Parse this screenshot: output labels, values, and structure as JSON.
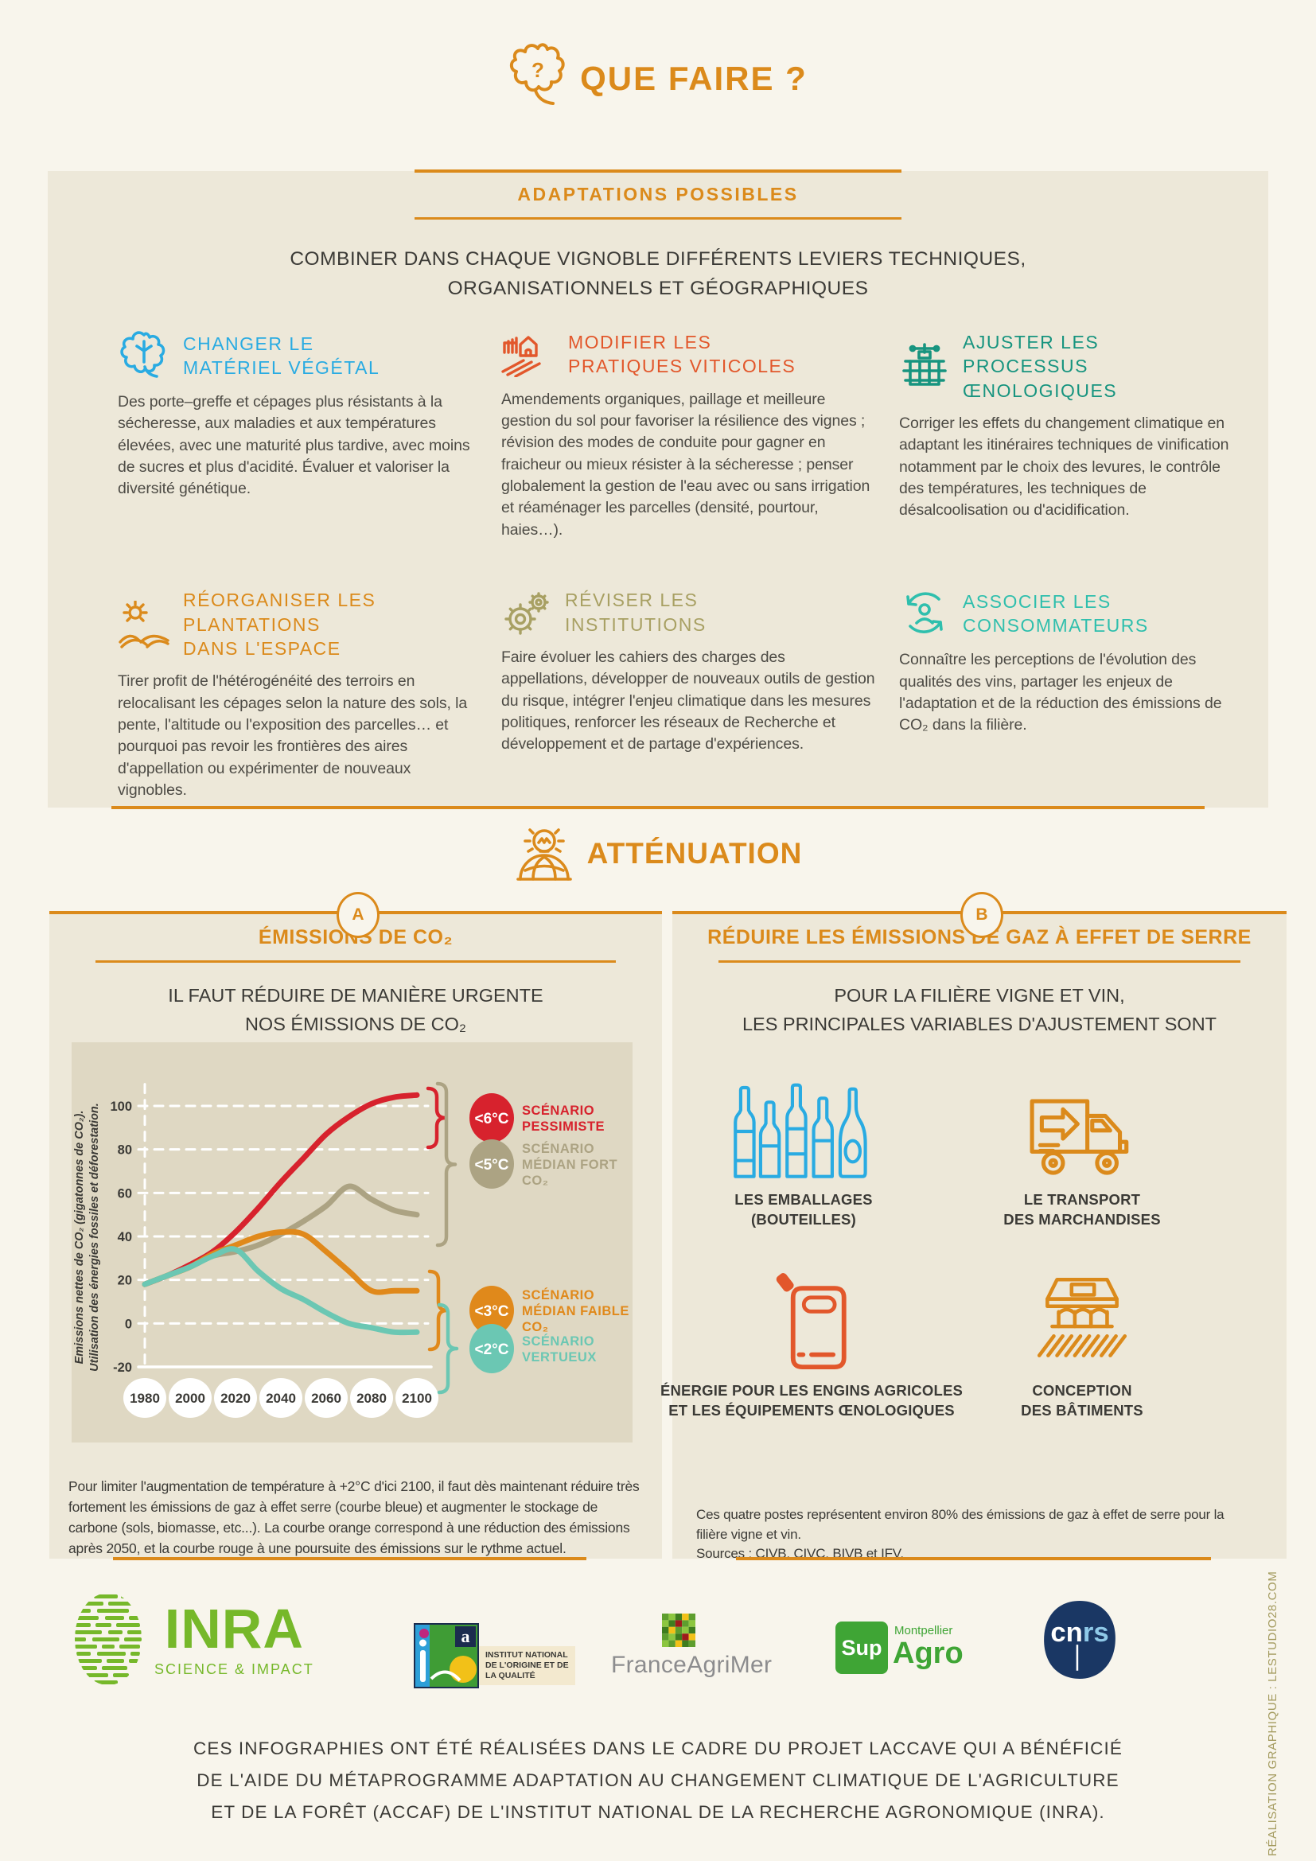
{
  "colors": {
    "cream": "#F8F5EC",
    "beige": "#EDE8D9",
    "tan": "#DFD8C3",
    "orange": "#DB8A1B",
    "red-orange": "#E2572B",
    "blue": "#29ABE2",
    "teal": "#17947F",
    "olive": "#A8A063",
    "turquoise": "#2FBFAD",
    "dark": "#3B3A36",
    "body": "#4D4B45",
    "red": "#D7222D",
    "logo-green": "#76B82A",
    "logo-grey": "#8C8C8E",
    "supagro-green": "#3FA535",
    "cnrs-navy": "#1A3764",
    "credit": "#A49B5F"
  },
  "page": {
    "title": "QUE FAIRE ?",
    "icon_question": "?",
    "credit_vertical": "RÉALISATION GRAPHIQUE : LESTUDIO28.COM"
  },
  "adaptations": {
    "header": "ADAPTATIONS POSSIBLES",
    "intro_line1": "COMBINER DANS CHAQUE VIGNOBLE DIFFÉRENTS LEVIERS TECHNIQUES,",
    "intro_line2": "ORGANISATIONNELS ET GÉOGRAPHIQUES",
    "items": [
      {
        "title": "CHANGER LE MATÉRIEL VÉGÉTAL",
        "color_key": "blue",
        "icon": "vine-leaf",
        "body": "Des porte–greffe et cépages plus résistants à la sécheresse, aux maladies et aux températures élevées, avec une maturité plus tardive, avec moins de sucres et plus d'acidité. Évaluer et valoriser la diversité génétique."
      },
      {
        "title": "MODIFIER LES PRATIQUES VITICOLES",
        "color_key": "red-orange",
        "icon": "farm-house",
        "body": "Amendements organiques, paillage et meilleure gestion du sol pour favoriser la résilience des vignes ; révision des modes de conduite pour gagner en fraicheur ou mieux résister à la sécheresse ; penser globalement la gestion de l'eau avec ou sans irrigation et réaménager les parcelles (densité, pourtour, haies…)."
      },
      {
        "title": "AJUSTER LES PROCESSUS ŒNOLOGIQUES",
        "color_key": "teal",
        "icon": "wine-press",
        "body": "Corriger les effets du changement climatique en adaptant les itinéraires techniques de vinification notamment par le choix des levures, le contrôle des températures, les techniques de désalcoolisation ou d'acidification."
      },
      {
        "title": "RÉORGANISER LES PLANTATIONS DANS L'ESPACE",
        "color_key": "orange",
        "icon": "sun-field",
        "body": "Tirer profit de l'hétérogénéité des terroirs en relocalisant les cépages selon la nature des sols, la pente, l'altitude ou l'exposition des parcelles… et pourquoi pas revoir les frontières des aires d'appellation ou expérimenter de nouveaux vignobles."
      },
      {
        "title": "RÉVISER LES INSTITUTIONS",
        "color_key": "olive",
        "icon": "gears",
        "body": "Faire évoluer les cahiers des charges des appellations, développer de nouveaux outils de gestion du risque, intégrer l'enjeu climatique dans les mesures politiques, renforcer les réseaux de Recherche et développement et de partage d'expériences."
      },
      {
        "title": "ASSOCIER LES CONSOMMATEURS",
        "color_key": "turquoise",
        "icon": "consumers",
        "body": "Connaître les perceptions de l'évolution des qualités des vins, partager les enjeux de l'adaptation et de la réduction des émissions de CO₂ dans la filière."
      }
    ]
  },
  "attenuation": {
    "header": "ATTÉNUATION",
    "panel_a": {
      "badge": "A",
      "title": "ÉMISSIONS DE CO₂",
      "subtitle_line1": "IL FAUT RÉDUIRE DE MANIÈRE URGENTE",
      "subtitle_line2": "NOS ÉMISSIONS DE CO₂",
      "note": "Pour limiter l'augmentation de température à +2°C d'ici 2100, il faut dès maintenant réduire très fortement les émissions de gaz à effet serre (courbe bleue) et augmenter le stockage de carbone (sols, biomasse, etc...). La courbe orange correspond à une réduction des émissions après 2050, et la courbe rouge à une poursuite des émissions sur le rythme actuel."
    },
    "panel_b": {
      "badge": "B",
      "title": "RÉDUIRE LES ÉMISSIONS DE GAZ À EFFET DE SERRE",
      "subtitle_line1": "POUR LA FILIÈRE VIGNE ET VIN,",
      "subtitle_line2": "LES PRINCIPALES VARIABLES D'AJUSTEMENT SONT",
      "items": [
        {
          "label_line1": "LES EMBALLAGES",
          "label_line2": "(BOUTEILLES)",
          "color_key": "blue",
          "icon": "bottles"
        },
        {
          "label_line1": "LE TRANSPORT",
          "label_line2": "DES MARCHANDISES",
          "color_key": "orange",
          "icon": "truck"
        },
        {
          "label_line1": "ÉNERGIE POUR LES ENGINS AGRICOLES",
          "label_line2": "ET LES ÉQUIPEMENTS ŒNOLOGIQUES",
          "color_key": "red-orange",
          "icon": "jerrican"
        },
        {
          "label_line1": "CONCEPTION",
          "label_line2": "DES BÂTIMENTS",
          "color_key": "orange",
          "icon": "building"
        }
      ],
      "note_line1": "Ces quatre postes représentent environ 80% des émissions de gaz à effet de serre pour la filière vigne et vin.",
      "note_line2": "Sources : CIVB, CIVC, BIVB et IFV."
    }
  },
  "chart_data": {
    "type": "line",
    "ylabel_line1": "Emissions nettes de CO₂ (gigatonnes de CO₂).",
    "ylabel_line2": "Utilisation des énergies fossiles et déforestation.",
    "x": [
      1980,
      1990,
      2000,
      2010,
      2020,
      2030,
      2040,
      2050,
      2060,
      2070,
      2080,
      2090,
      2100
    ],
    "x_ticks": [
      1980,
      2000,
      2020,
      2040,
      2060,
      2080,
      2100
    ],
    "y_ticks": [
      100,
      80,
      60,
      40,
      20,
      0,
      -20
    ],
    "ylim": [
      -20,
      110
    ],
    "grid": "white-dashed",
    "legend_position": "right-inside",
    "series": [
      {
        "name": "SCÉNARIO PESSIMISTE",
        "badge": "<6°C",
        "color": "#D7222D",
        "label_lines": [
          "SCÉNARIO",
          "PESSIMISTE"
        ],
        "values": [
          18,
          22,
          27,
          33,
          42,
          53,
          65,
          76,
          87,
          95,
          101,
          104,
          105
        ]
      },
      {
        "name": "SCÉNARIO MÉDIAN FORT CO₂",
        "badge": "<5°C",
        "color": "#ACA383",
        "label_lines": [
          "SCÉNARIO",
          "MÉDIAN FORT",
          "CO₂"
        ],
        "values": [
          18,
          22,
          26,
          31,
          33,
          36,
          41,
          47,
          54,
          63,
          57,
          52,
          50
        ]
      },
      {
        "name": "SCÉNARIO MÉDIAN FAIBLE CO₂",
        "badge": "<3°C",
        "color": "#E0891B",
        "label_lines": [
          "SCÉNARIO",
          "MÉDIAN FAIBLE",
          "CO₂"
        ],
        "values": [
          18,
          22,
          26,
          32,
          36,
          40,
          42,
          41,
          33,
          24,
          15,
          15,
          15
        ]
      },
      {
        "name": "SCÉNARIO VERTUEUX",
        "badge": "<2°C",
        "color": "#6BC7B3",
        "label_lines": [
          "SCÉNARIO",
          "VERTUEUX"
        ],
        "values": [
          18,
          22,
          26,
          31,
          34,
          24,
          16,
          11,
          5,
          0,
          -2,
          -4,
          -4
        ]
      }
    ]
  },
  "logos": {
    "inra": {
      "name": "INRA",
      "tagline": "SCIENCE & IMPACT"
    },
    "inao": {
      "caption_line1": "INSTITUT NATIONAL",
      "caption_line2": "DE L'ORIGINE ET DE",
      "caption_line3": "LA QUALITÉ"
    },
    "franceagrimer": {
      "name": "FranceAgriMer"
    },
    "supagro": {
      "city": "Montpellier",
      "part1": "Sup",
      "part2": "Agro"
    },
    "cnrs": {
      "name_part1": "cn",
      "name_part2": "rs"
    }
  },
  "footer": {
    "line1": "CES INFOGRAPHIES ONT ÉTÉ RÉALISÉES DANS LE CADRE DU PROJET LACCAVE QUI A BÉNÉFICIÉ",
    "line2": "DE L'AIDE DU MÉTAPROGRAMME ADAPTATION AU CHANGEMENT CLIMATIQUE DE L'AGRICULTURE",
    "line3": "ET DE LA FORÊT (ACCAF) DE L'INSTITUT NATIONAL DE LA RECHERCHE AGRONOMIQUE (INRA)."
  }
}
